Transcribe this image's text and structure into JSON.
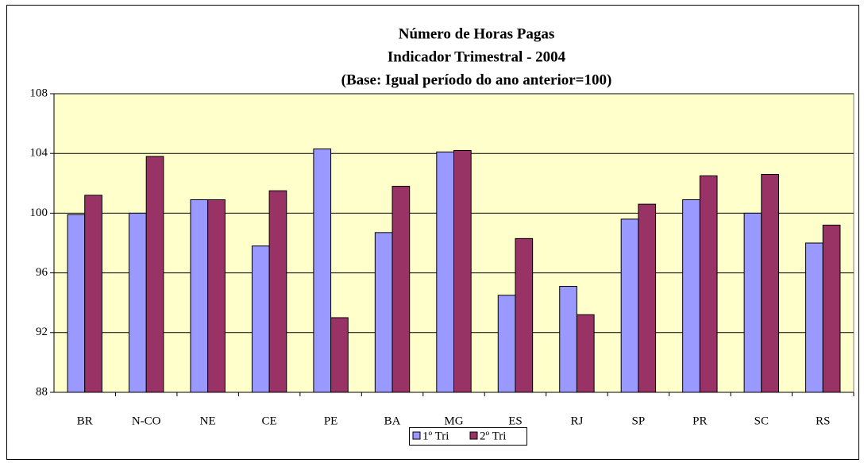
{
  "chart_data": {
    "type": "bar",
    "title": [
      "Número de Horas Pagas",
      "Indicador Trimestral - 2004",
      "(Base: Igual período do ano anterior=100)"
    ],
    "categories": [
      "BR",
      "N-CO",
      "NE",
      "CE",
      "PE",
      "BA",
      "MG",
      "ES",
      "RJ",
      "SP",
      "PR",
      "SC",
      "RS"
    ],
    "series": [
      {
        "name": "1º Tri",
        "color": "#9999ff",
        "values": [
          99.9,
          100.0,
          100.9,
          97.8,
          104.3,
          98.7,
          104.1,
          94.5,
          95.1,
          99.6,
          100.9,
          100.0,
          98.0
        ]
      },
      {
        "name": "2º Tri",
        "color": "#993366",
        "values": [
          101.2,
          103.8,
          100.9,
          101.5,
          93.0,
          101.8,
          104.2,
          98.3,
          93.2,
          100.6,
          102.5,
          102.6,
          99.2
        ]
      }
    ],
    "ylim": [
      88,
      108
    ],
    "yticks": [
      88,
      92,
      96,
      100,
      104,
      108
    ],
    "grid": true,
    "background": "#ffffcc",
    "legend": "bottom"
  }
}
